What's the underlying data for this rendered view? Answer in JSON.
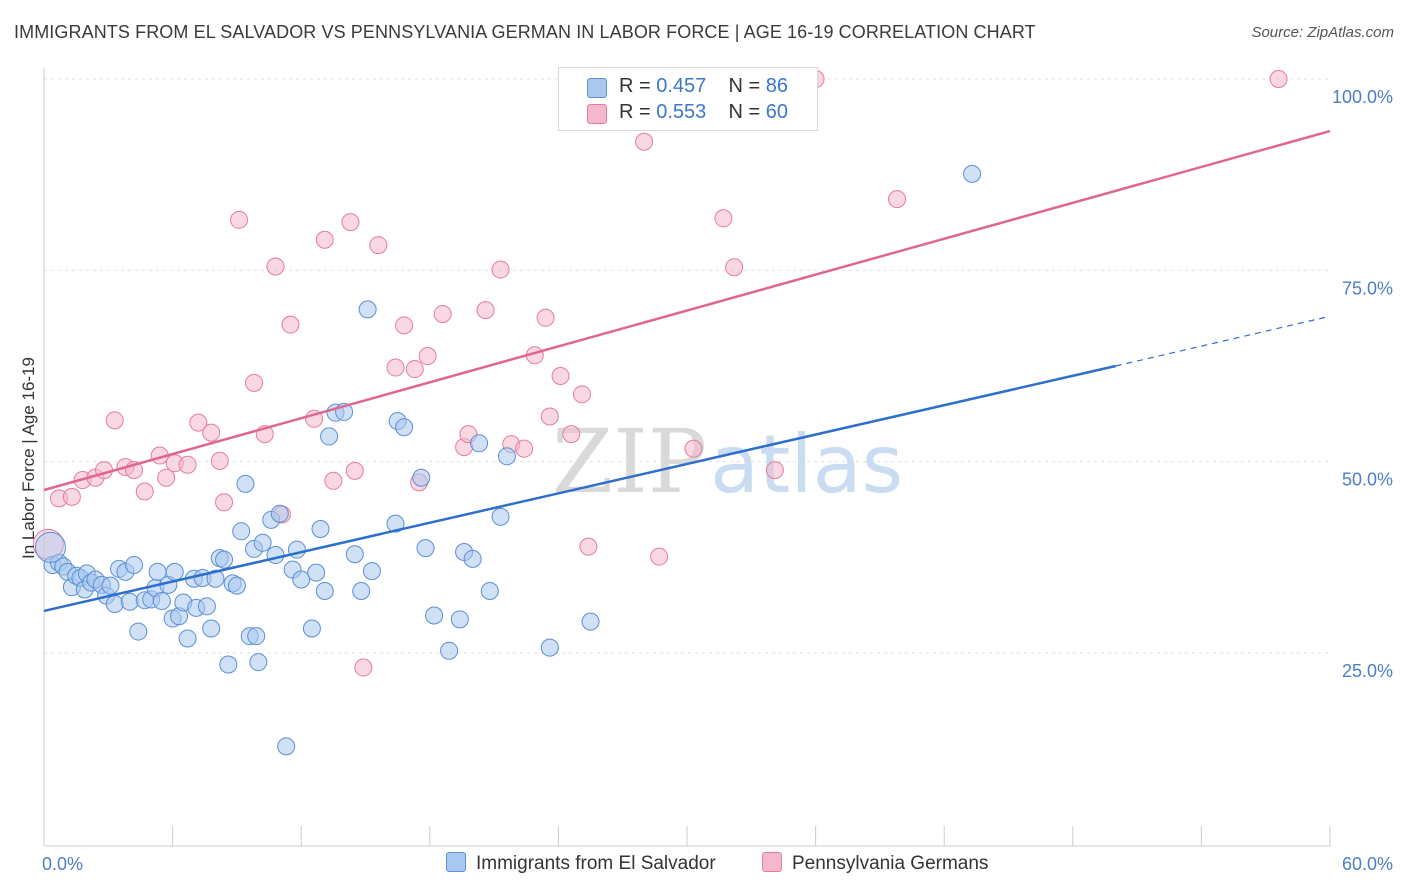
{
  "title": "IMMIGRANTS FROM EL SALVADOR VS PENNSYLVANIA GERMAN IN LABOR FORCE | AGE 16-19 CORRELATION CHART",
  "source": "Source: ZipAtlas.com",
  "watermark": {
    "zip": "ZIP",
    "atlas": "atlas"
  },
  "legend": {
    "rows": [
      {
        "r_label": "R = ",
        "r_value": "0.457",
        "n_label": "N = ",
        "n_value": "86"
      },
      {
        "r_label": "R = ",
        "r_value": "0.553",
        "n_label": "N = ",
        "n_value": "60"
      }
    ]
  },
  "bottom_legend": {
    "blue": "Immigrants from El Salvador",
    "pink": "Pennsylvania Germans"
  },
  "chart_data": {
    "type": "scatter",
    "ylabel": "In Labor Force | Age 16-19",
    "xlim": [
      0,
      60
    ],
    "ylim": [
      0,
      105
    ],
    "x_ticks": [
      {
        "value": 0,
        "label": "0.0%"
      },
      {
        "value": 60,
        "label": "60.0%"
      }
    ],
    "y_ticks": [
      {
        "value": 25,
        "label": "25.0%"
      },
      {
        "value": 50,
        "label": "50.0%"
      },
      {
        "value": 75,
        "label": "75.0%"
      },
      {
        "value": 100,
        "label": "100.0%"
      }
    ],
    "colors": {
      "blue": "#5b8fd6",
      "blue_fill": "#a9c8ef",
      "pink": "#e57c9e",
      "pink_fill": "#f5b8cb",
      "blue_line": "#2e6fcc",
      "pink_line": "#e06690"
    },
    "series": [
      {
        "name": "Immigrants from El Salvador",
        "color": "blue",
        "trend": {
          "x0": 0,
          "y0": 30.5,
          "x1": 50,
          "y1": 62.5,
          "dash_to_x": 60,
          "dash_to_y": 69
        },
        "points": [
          [
            0.4,
            36.5
          ],
          [
            0.7,
            36.8
          ],
          [
            0.9,
            36.3
          ],
          [
            1.1,
            35.6
          ],
          [
            1.3,
            33.6
          ],
          [
            1.5,
            35.1
          ],
          [
            1.7,
            34.8
          ],
          [
            1.9,
            33.3
          ],
          [
            2.0,
            35.4
          ],
          [
            2.2,
            34.2
          ],
          [
            2.4,
            34.6
          ],
          [
            2.7,
            33.9
          ],
          [
            2.9,
            32.5
          ],
          [
            3.1,
            33.8
          ],
          [
            3.3,
            31.4
          ],
          [
            3.5,
            36.0
          ],
          [
            3.8,
            35.6
          ],
          [
            4.0,
            31.7
          ],
          [
            4.2,
            36.5
          ],
          [
            4.4,
            27.8
          ],
          [
            4.7,
            31.9
          ],
          [
            5.0,
            32.0
          ],
          [
            5.2,
            33.5
          ],
          [
            5.3,
            35.6
          ],
          [
            5.5,
            31.8
          ],
          [
            5.8,
            33.9
          ],
          [
            6.0,
            29.5
          ],
          [
            6.1,
            35.6
          ],
          [
            6.3,
            29.8
          ],
          [
            6.5,
            31.6
          ],
          [
            6.7,
            26.9
          ],
          [
            7.0,
            34.7
          ],
          [
            7.1,
            30.9
          ],
          [
            7.4,
            34.8
          ],
          [
            7.6,
            31.1
          ],
          [
            7.8,
            28.2
          ],
          [
            8.0,
            34.7
          ],
          [
            8.2,
            37.4
          ],
          [
            8.4,
            37.2
          ],
          [
            8.6,
            23.5
          ],
          [
            8.8,
            34.1
          ],
          [
            9.0,
            33.8
          ],
          [
            9.2,
            40.9
          ],
          [
            9.4,
            47.1
          ],
          [
            9.6,
            27.2
          ],
          [
            9.8,
            38.6
          ],
          [
            9.9,
            27.2
          ],
          [
            10.0,
            23.8
          ],
          [
            10.2,
            39.4
          ],
          [
            10.6,
            42.4
          ],
          [
            10.8,
            37.8
          ],
          [
            11.0,
            43.2
          ],
          [
            11.3,
            12.8
          ],
          [
            11.6,
            35.9
          ],
          [
            11.8,
            38.5
          ],
          [
            12.0,
            34.6
          ],
          [
            12.5,
            28.2
          ],
          [
            12.7,
            35.5
          ],
          [
            12.9,
            41.2
          ],
          [
            13.1,
            33.1
          ],
          [
            13.3,
            53.3
          ],
          [
            13.6,
            56.4
          ],
          [
            14.0,
            56.5
          ],
          [
            14.5,
            37.9
          ],
          [
            14.8,
            33.1
          ],
          [
            15.1,
            69.9
          ],
          [
            15.3,
            35.7
          ],
          [
            16.4,
            41.9
          ],
          [
            16.5,
            55.3
          ],
          [
            16.8,
            54.5
          ],
          [
            17.6,
            47.9
          ],
          [
            17.8,
            38.7
          ],
          [
            18.2,
            29.9
          ],
          [
            18.9,
            25.3
          ],
          [
            19.4,
            29.4
          ],
          [
            19.6,
            38.2
          ],
          [
            20.0,
            37.3
          ],
          [
            20.3,
            52.4
          ],
          [
            20.8,
            33.1
          ],
          [
            21.3,
            42.8
          ],
          [
            21.6,
            50.7
          ],
          [
            23.6,
            25.7
          ],
          [
            25.5,
            29.1
          ],
          [
            43.3,
            87.6
          ]
        ],
        "big_point": [
          0.3,
          38.8
        ]
      },
      {
        "name": "Pennsylvania Germans",
        "color": "pink",
        "trend": {
          "x0": 0,
          "y0": 46.3,
          "x1": 60,
          "y1": 93.2
        },
        "points": [
          [
            0.7,
            45.2
          ],
          [
            1.3,
            45.4
          ],
          [
            1.8,
            47.6
          ],
          [
            2.4,
            47.9
          ],
          [
            2.8,
            48.9
          ],
          [
            3.3,
            55.4
          ],
          [
            3.8,
            49.3
          ],
          [
            4.2,
            48.9
          ],
          [
            4.7,
            46.1
          ],
          [
            5.4,
            50.8
          ],
          [
            5.7,
            47.9
          ],
          [
            6.1,
            49.8
          ],
          [
            6.7,
            49.6
          ],
          [
            7.2,
            55.1
          ],
          [
            7.8,
            53.8
          ],
          [
            8.2,
            50.1
          ],
          [
            8.4,
            44.7
          ],
          [
            9.1,
            81.6
          ],
          [
            9.8,
            60.3
          ],
          [
            10.3,
            53.6
          ],
          [
            10.8,
            75.5
          ],
          [
            11.1,
            43.1
          ],
          [
            11.5,
            67.9
          ],
          [
            12.6,
            55.6
          ],
          [
            13.1,
            79.0
          ],
          [
            13.5,
            47.5
          ],
          [
            14.3,
            81.3
          ],
          [
            14.5,
            48.8
          ],
          [
            14.9,
            23.1
          ],
          [
            15.6,
            78.3
          ],
          [
            16.4,
            62.3
          ],
          [
            16.8,
            67.8
          ],
          [
            17.3,
            62.1
          ],
          [
            17.5,
            47.3
          ],
          [
            17.9,
            63.8
          ],
          [
            18.6,
            69.3
          ],
          [
            19.6,
            51.9
          ],
          [
            19.8,
            53.6
          ],
          [
            20.6,
            69.8
          ],
          [
            21.3,
            75.1
          ],
          [
            21.8,
            52.3
          ],
          [
            22.4,
            51.7
          ],
          [
            22.9,
            63.9
          ],
          [
            23.4,
            68.8
          ],
          [
            23.6,
            55.9
          ],
          [
            24.1,
            61.2
          ],
          [
            24.6,
            53.6
          ],
          [
            25.1,
            58.8
          ],
          [
            25.4,
            38.9
          ],
          [
            28.0,
            91.8
          ],
          [
            28.7,
            37.6
          ],
          [
            30.3,
            51.7
          ],
          [
            31.7,
            81.8
          ],
          [
            32.2,
            75.4
          ],
          [
            34.1,
            48.9
          ],
          [
            36.0,
            100.0
          ],
          [
            39.8,
            84.3
          ],
          [
            57.6,
            100.0
          ],
          [
            28.5,
            100.0
          ]
        ],
        "big_point": [
          0.2,
          39.2
        ]
      }
    ]
  }
}
